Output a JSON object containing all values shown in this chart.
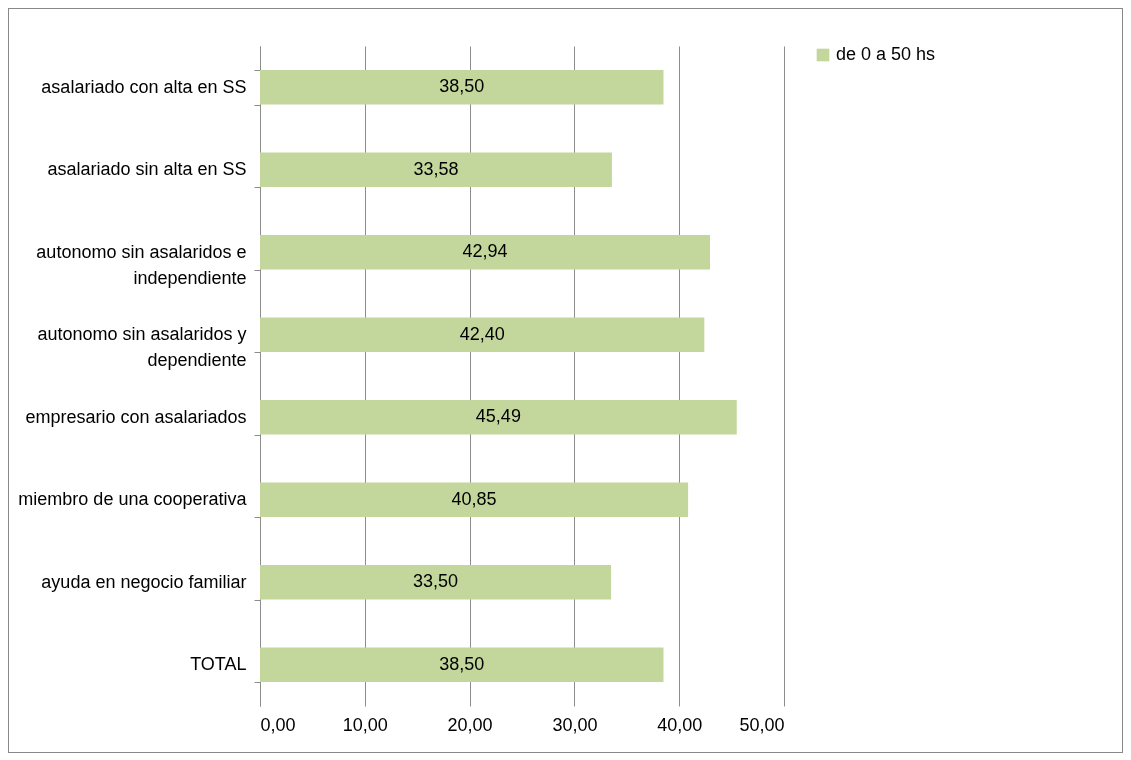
{
  "chart_data": {
    "type": "bar",
    "orientation": "horizontal",
    "categories": [
      "asalariado con alta en SS",
      "asalariado sin alta en SS",
      "autonomo sin asalaridos e independiente",
      "autonomo sin asalaridos y dependiente",
      "empresario con asalariados",
      "miembro de una cooperativa",
      "ayuda en negocio familiar",
      "TOTAL"
    ],
    "series": [
      {
        "name": "de 0 a 50 hs",
        "color": "#c3d69b",
        "values": [
          38.5,
          33.58,
          42.94,
          42.4,
          45.49,
          40.85,
          33.5,
          38.5
        ],
        "value_labels": [
          "38,50",
          "33,58",
          "42,94",
          "42,40",
          "45,49",
          "40,85",
          "33,50",
          "38,50"
        ]
      }
    ],
    "xlim": [
      0,
      50
    ],
    "xticks": [
      {
        "value": 0,
        "label": "0,00"
      },
      {
        "value": 10,
        "label": "10,00"
      },
      {
        "value": 20,
        "label": "20,00"
      },
      {
        "value": 30,
        "label": "30,00"
      },
      {
        "value": 40,
        "label": "40,00"
      },
      {
        "value": 50,
        "label": "50,00"
      }
    ],
    "grid": "x",
    "legend": "right"
  }
}
